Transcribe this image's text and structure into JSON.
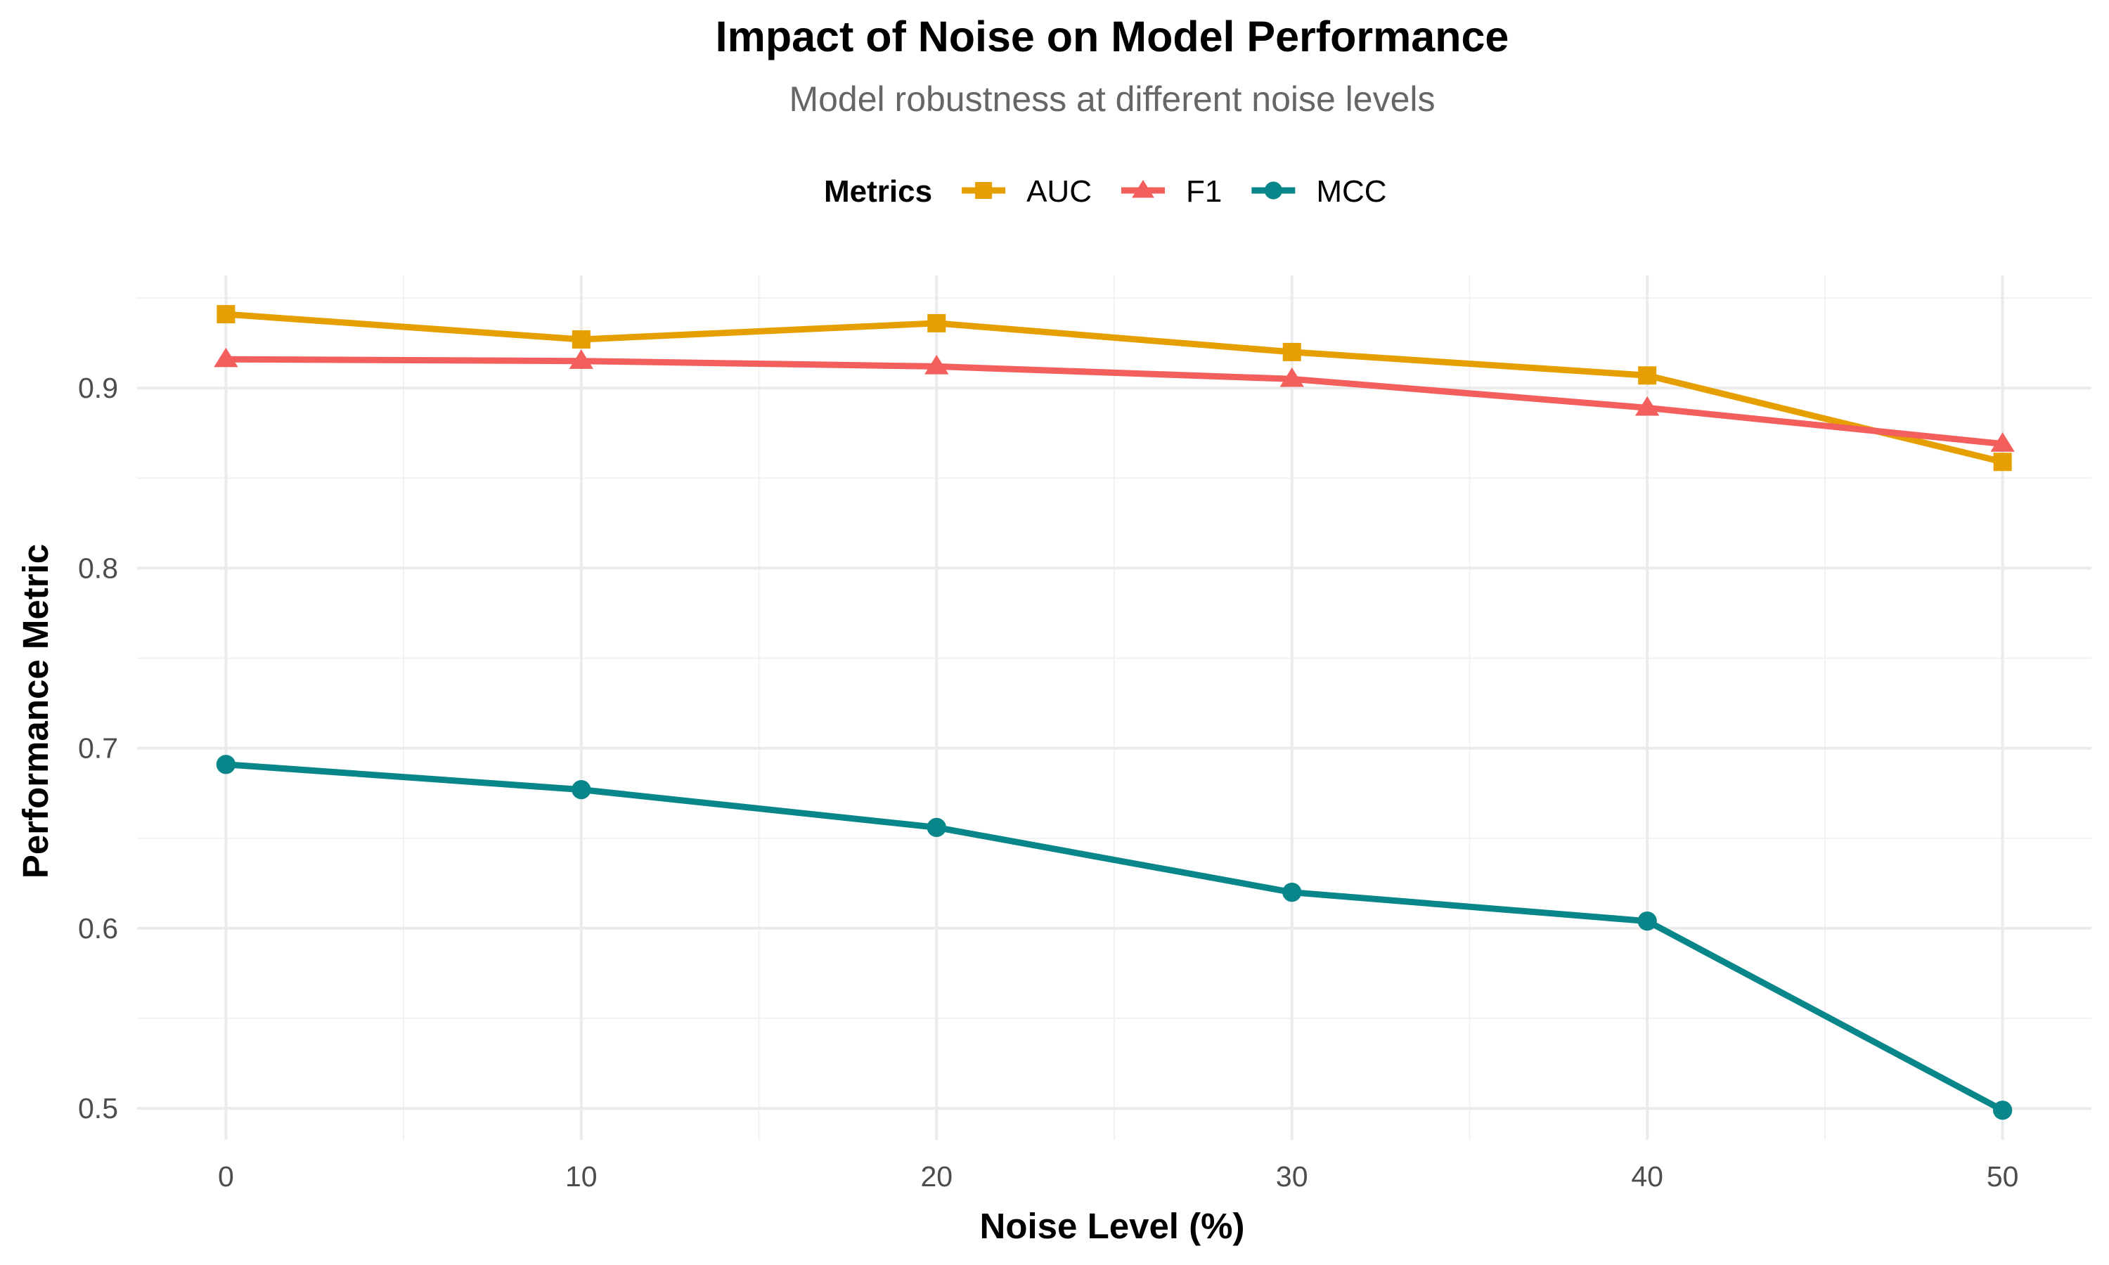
{
  "chart_data": {
    "type": "line",
    "title": "Impact of Noise on Model Performance",
    "subtitle": "Model robustness at different noise levels",
    "xlabel": "Noise Level (%)",
    "ylabel": "Performance Metric",
    "x": [
      0,
      10,
      20,
      30,
      40,
      50
    ],
    "x_ticks": [
      "0",
      "10",
      "20",
      "30",
      "40",
      "50"
    ],
    "y_ticks": [
      "0.5",
      "0.6",
      "0.7",
      "0.8",
      "0.9"
    ],
    "xlim": [
      -2.5,
      52.5
    ],
    "ylim": [
      0.4825,
      0.9625
    ],
    "grid": true,
    "legend": {
      "title": "Metrics",
      "placement": "top"
    },
    "series": [
      {
        "name": "AUC",
        "color": "#E69F00",
        "marker": "square",
        "values": [
          0.941,
          0.927,
          0.936,
          0.92,
          0.907,
          0.859
        ]
      },
      {
        "name": "F1",
        "color": "#F25F5C",
        "marker": "triangle",
        "values": [
          0.916,
          0.915,
          0.912,
          0.905,
          0.889,
          0.869
        ]
      },
      {
        "name": "MCC",
        "color": "#08868A",
        "marker": "circle",
        "values": [
          0.691,
          0.677,
          0.656,
          0.62,
          0.604,
          0.499
        ]
      }
    ]
  }
}
